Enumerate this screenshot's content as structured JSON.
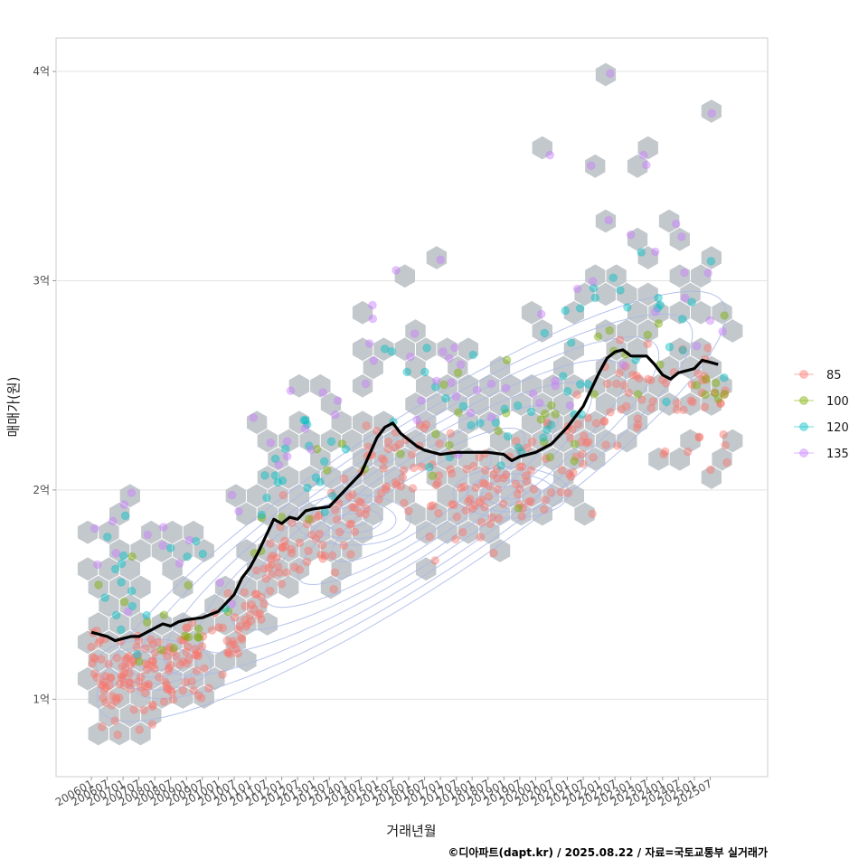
{
  "chart_data": {
    "type": "scatter",
    "xlabel": "거래년월",
    "ylabel": "매매가(원)",
    "caption": "©디아파트(dapt.kr) / 2025.08.22 / 자료=국토교통부 실거래가",
    "x_ticks": [
      "200601",
      "200607",
      "200701",
      "200707",
      "200801",
      "200807",
      "200901",
      "200907",
      "201001",
      "201007",
      "201101",
      "201107",
      "201201",
      "201207",
      "201301",
      "201307",
      "201401",
      "201407",
      "201501",
      "201507",
      "201601",
      "201607",
      "201701",
      "201707",
      "201801",
      "201807",
      "201901",
      "201907",
      "202001",
      "202007",
      "202101",
      "202107",
      "202201",
      "202207",
      "202301",
      "202307",
      "202401",
      "202407",
      "202501",
      "202507"
    ],
    "y_ticks": [
      {
        "label": "1억",
        "value": 1.0
      },
      {
        "label": "2억",
        "value": 2.0
      },
      {
        "label": "3억",
        "value": 3.0
      },
      {
        "label": "4억",
        "value": 4.0
      }
    ],
    "ylim": [
      0.63,
      4.16
    ],
    "xlim_index": [
      -2.1,
      41.5
    ],
    "grid": true,
    "legend_position": "right",
    "series": [
      {
        "name": "85",
        "color": "#F8766D"
      },
      {
        "name": "100",
        "color": "#7CAE00"
      },
      {
        "name": "120",
        "color": "#00BFC4"
      },
      {
        "name": "135",
        "color": "#C77CFF"
      }
    ],
    "trend_line": {
      "color": "#000000",
      "points": [
        [
          0,
          1.32
        ],
        [
          0.5,
          1.31
        ],
        [
          1,
          1.3
        ],
        [
          1.5,
          1.28
        ],
        [
          2,
          1.29
        ],
        [
          2.5,
          1.3
        ],
        [
          3,
          1.3
        ],
        [
          3.5,
          1.32
        ],
        [
          4,
          1.34
        ],
        [
          4.5,
          1.36
        ],
        [
          5,
          1.35
        ],
        [
          5.5,
          1.37
        ],
        [
          6,
          1.38
        ],
        [
          7,
          1.39
        ],
        [
          8,
          1.42
        ],
        [
          9,
          1.5
        ],
        [
          9.5,
          1.58
        ],
        [
          10,
          1.63
        ],
        [
          10.5,
          1.7
        ],
        [
          11,
          1.78
        ],
        [
          11.5,
          1.86
        ],
        [
          12,
          1.84
        ],
        [
          12.5,
          1.87
        ],
        [
          13,
          1.86
        ],
        [
          13.5,
          1.9
        ],
        [
          14,
          1.91
        ],
        [
          15,
          1.92
        ],
        [
          16,
          2.0
        ],
        [
          17,
          2.08
        ],
        [
          18,
          2.25
        ],
        [
          18.5,
          2.3
        ],
        [
          19,
          2.32
        ],
        [
          19.5,
          2.27
        ],
        [
          20,
          2.24
        ],
        [
          20.5,
          2.21
        ],
        [
          21,
          2.19
        ],
        [
          22,
          2.17
        ],
        [
          23,
          2.18
        ],
        [
          24,
          2.18
        ],
        [
          25,
          2.18
        ],
        [
          26,
          2.17
        ],
        [
          26.5,
          2.14
        ],
        [
          27,
          2.16
        ],
        [
          28,
          2.18
        ],
        [
          29,
          2.22
        ],
        [
          30,
          2.3
        ],
        [
          31,
          2.4
        ],
        [
          31.5,
          2.48
        ],
        [
          32,
          2.56
        ],
        [
          32.5,
          2.63
        ],
        [
          33,
          2.66
        ],
        [
          33.5,
          2.67
        ],
        [
          34,
          2.64
        ],
        [
          35,
          2.64
        ],
        [
          35.5,
          2.6
        ],
        [
          36,
          2.55
        ],
        [
          36.5,
          2.53
        ],
        [
          37,
          2.56
        ],
        [
          38,
          2.58
        ],
        [
          38.5,
          2.62
        ],
        [
          39,
          2.61
        ],
        [
          39.5,
          2.6
        ]
      ]
    }
  }
}
